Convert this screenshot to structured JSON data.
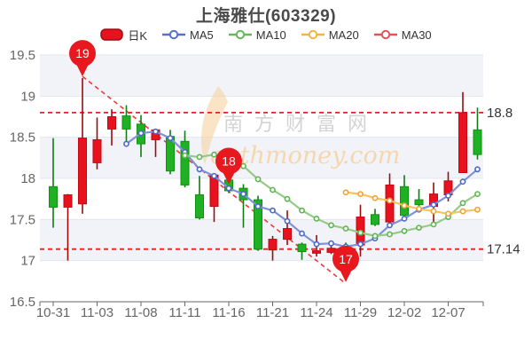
{
  "header": {
    "title": "上海雅仕(603329)"
  },
  "legend": {
    "items": [
      {
        "label": "日K",
        "type": "candle",
        "color": "#e8111e",
        "border": "#991016"
      },
      {
        "label": "MA5",
        "type": "line",
        "color": "#5471cb"
      },
      {
        "label": "MA10",
        "type": "line",
        "color": "#63b957"
      },
      {
        "label": "MA20",
        "type": "line",
        "color": "#f5b441"
      },
      {
        "label": "MA30",
        "type": "line",
        "color": "#e05555"
      }
    ]
  },
  "watermark": {
    "cn": "南方财富网",
    "en": "outhmoney.com"
  },
  "chart_data": {
    "type": "candlestick",
    "title": "上海雅仕(603329)",
    "ohlc_order": "open,close,low,high",
    "dates": [
      "10-31",
      "11-01",
      "11-02",
      "11-03",
      "11-04",
      "11-07",
      "11-08",
      "11-09",
      "11-10",
      "11-11",
      "11-14",
      "11-15",
      "11-16",
      "11-17",
      "11-18",
      "11-21",
      "11-22",
      "11-23",
      "11-24",
      "11-25",
      "11-28",
      "11-29",
      "11-30",
      "12-01",
      "12-02",
      "12-05",
      "12-06",
      "12-07",
      "12-08",
      "12-09"
    ],
    "x_tick_labels": [
      "10-31",
      "11-03",
      "11-08",
      "11-11",
      "11-16",
      "11-21",
      "11-24",
      "11-29",
      "12-02",
      "12-07"
    ],
    "ylim": [
      16.5,
      19.5
    ],
    "y_tick_labels": [
      "19.5",
      "19",
      "18.5",
      "18",
      "17.5",
      "17",
      "16.5"
    ],
    "candles": [
      [
        17.9,
        17.65,
        17.4,
        18.49
      ],
      [
        17.65,
        17.8,
        17.0,
        17.81
      ],
      [
        17.69,
        18.49,
        17.57,
        19.22
      ],
      [
        18.19,
        18.47,
        18.11,
        18.74
      ],
      [
        18.6,
        18.75,
        18.4,
        18.84
      ],
      [
        18.76,
        18.6,
        18.45,
        18.89
      ],
      [
        18.66,
        18.42,
        18.26,
        18.77
      ],
      [
        18.47,
        18.59,
        18.26,
        18.6
      ],
      [
        18.51,
        18.09,
        18.05,
        18.59
      ],
      [
        18.45,
        17.92,
        17.89,
        18.58
      ],
      [
        17.8,
        17.52,
        17.5,
        18.03
      ],
      [
        17.66,
        18.04,
        17.47,
        18.06
      ],
      [
        17.98,
        17.85,
        17.82,
        18.02
      ],
      [
        17.88,
        17.74,
        17.4,
        17.93
      ],
      [
        17.74,
        17.14,
        17.12,
        17.79
      ],
      [
        17.13,
        17.26,
        17.0,
        17.3
      ],
      [
        17.26,
        17.39,
        17.19,
        17.61
      ],
      [
        17.2,
        17.11,
        17.01,
        17.22
      ],
      [
        17.09,
        17.12,
        17.05,
        17.31
      ],
      [
        17.1,
        17.15,
        17.08,
        17.18
      ],
      [
        17.15,
        17.1,
        17.04,
        17.22
      ],
      [
        17.19,
        17.53,
        17.05,
        17.68
      ],
      [
        17.56,
        17.44,
        17.42,
        17.63
      ],
      [
        17.47,
        17.92,
        17.44,
        18.06
      ],
      [
        17.9,
        17.55,
        17.5,
        18.04
      ],
      [
        17.74,
        17.68,
        17.64,
        17.87
      ],
      [
        17.66,
        17.81,
        17.47,
        17.95
      ],
      [
        17.8,
        17.97,
        17.72,
        18.08
      ],
      [
        18.07,
        18.8,
        18.07,
        19.05
      ],
      [
        18.59,
        18.29,
        18.23,
        18.86
      ]
    ],
    "series": [
      {
        "name": "MA5",
        "values": [
          null,
          null,
          null,
          null,
          null,
          18.42,
          18.55,
          18.57,
          18.49,
          18.32,
          18.11,
          18.03,
          17.88,
          17.81,
          17.66,
          17.61,
          17.48,
          17.33,
          17.2,
          17.21,
          17.17,
          17.2,
          17.27,
          17.43,
          17.51,
          17.62,
          17.68,
          17.79,
          17.96,
          18.11
        ]
      },
      {
        "name": "MA10",
        "values": [
          null,
          null,
          null,
          null,
          null,
          null,
          null,
          null,
          null,
          18.28,
          18.26,
          18.29,
          18.23,
          18.15,
          17.99,
          17.86,
          17.75,
          17.61,
          17.51,
          17.43,
          17.39,
          17.34,
          17.3,
          17.32,
          17.36,
          17.4,
          17.44,
          17.53,
          17.7,
          17.81
        ]
      },
      {
        "name": "MA20",
        "values": [
          null,
          null,
          null,
          null,
          null,
          null,
          null,
          null,
          null,
          null,
          null,
          null,
          null,
          null,
          null,
          null,
          null,
          null,
          null,
          null,
          17.83,
          17.81,
          17.76,
          17.73,
          17.67,
          17.63,
          17.6,
          17.57,
          17.6,
          17.62
        ]
      },
      {
        "name": "MA30",
        "values": [
          null,
          null,
          null,
          null,
          null,
          null,
          null,
          null,
          null,
          null,
          null,
          null,
          null,
          null,
          null,
          null,
          null,
          null,
          null,
          null,
          null,
          null,
          null,
          null,
          null,
          null,
          null,
          null,
          null,
          null
        ]
      }
    ],
    "ref_lines": [
      {
        "price": 18.8,
        "label": "18.8"
      },
      {
        "price": 17.14,
        "label": "17.14"
      }
    ],
    "balloons": [
      {
        "label": "19",
        "index": 2,
        "price": 19.24
      },
      {
        "label": "18",
        "index": 12,
        "price": 17.93
      },
      {
        "label": "17",
        "index": 20,
        "price": 16.74
      }
    ],
    "trendline": {
      "from": {
        "index": 2,
        "price": 19.24
      },
      "to": {
        "index": 20,
        "price": 16.72
      }
    }
  },
  "colors": {
    "up": "#e8111e",
    "up_border": "#c20812",
    "up_wick": "#9a0c0c",
    "down": "#1fb024",
    "down_border": "#0f9212",
    "down_wick": "#117a14",
    "ma5": "#7e92d8",
    "ma5_marker": "#4c69c5",
    "ma10": "#95cb85",
    "ma10_marker": "#5fb551",
    "ma20": "#f6c45c",
    "ma20_marker": "#efa335",
    "ma30": "#e05555",
    "balloon": "#e7191f",
    "ref_line": "#e02222",
    "trend_line": "#ee3b35",
    "band": "#f2f3f9",
    "grid": "#e2e5ef",
    "axis": "#666666",
    "label": "#666666",
    "price_label": "#333333",
    "watermark_cn": "#c9c9c9",
    "watermark_en": "#f5d3a0"
  }
}
